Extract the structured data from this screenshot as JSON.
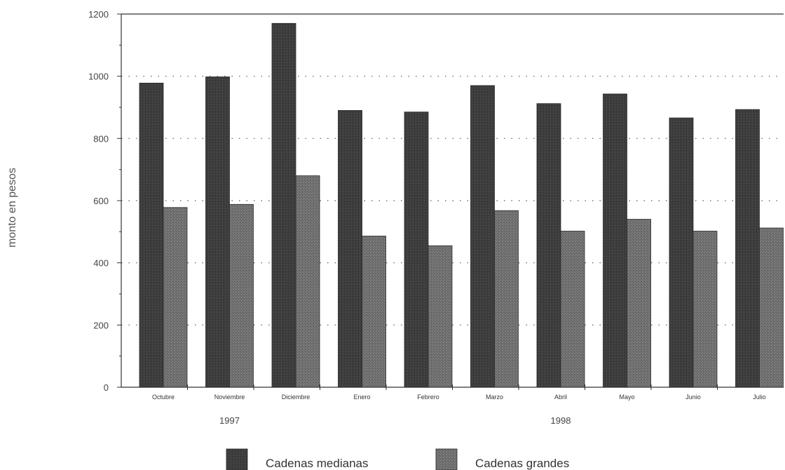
{
  "chart_data": {
    "type": "bar",
    "title": "",
    "xlabel": "",
    "ylabel": "monto en pesos",
    "ylim": [
      0,
      1200
    ],
    "yticks": [
      0,
      200,
      400,
      600,
      800,
      1000,
      1200
    ],
    "grid": "dotted horizontal",
    "categories": [
      "Octubre",
      "Noviembre",
      "Diciembre",
      "Enero",
      "Febrero",
      "Marzo",
      "Abril",
      "Mayo",
      "Junio",
      "Julio"
    ],
    "year_groups": [
      {
        "label": "1997",
        "categories": [
          "Octubre",
          "Noviembre",
          "Diciembre"
        ]
      },
      {
        "label": "1998",
        "categories": [
          "Enero",
          "Febrero",
          "Marzo",
          "Abril",
          "Mayo",
          "Junio",
          "Julio"
        ]
      }
    ],
    "series": [
      {
        "name": "Cadenas medianas",
        "color": "#3d3d3d",
        "values": [
          978,
          998,
          1170,
          890,
          885,
          970,
          912,
          943,
          866,
          893
        ]
      },
      {
        "name": "Cadenas grandes",
        "color": "#6e6e6e",
        "values": [
          578,
          588,
          680,
          486,
          455,
          568,
          502,
          540,
          502,
          512
        ]
      }
    ],
    "legend_position": "bottom"
  }
}
